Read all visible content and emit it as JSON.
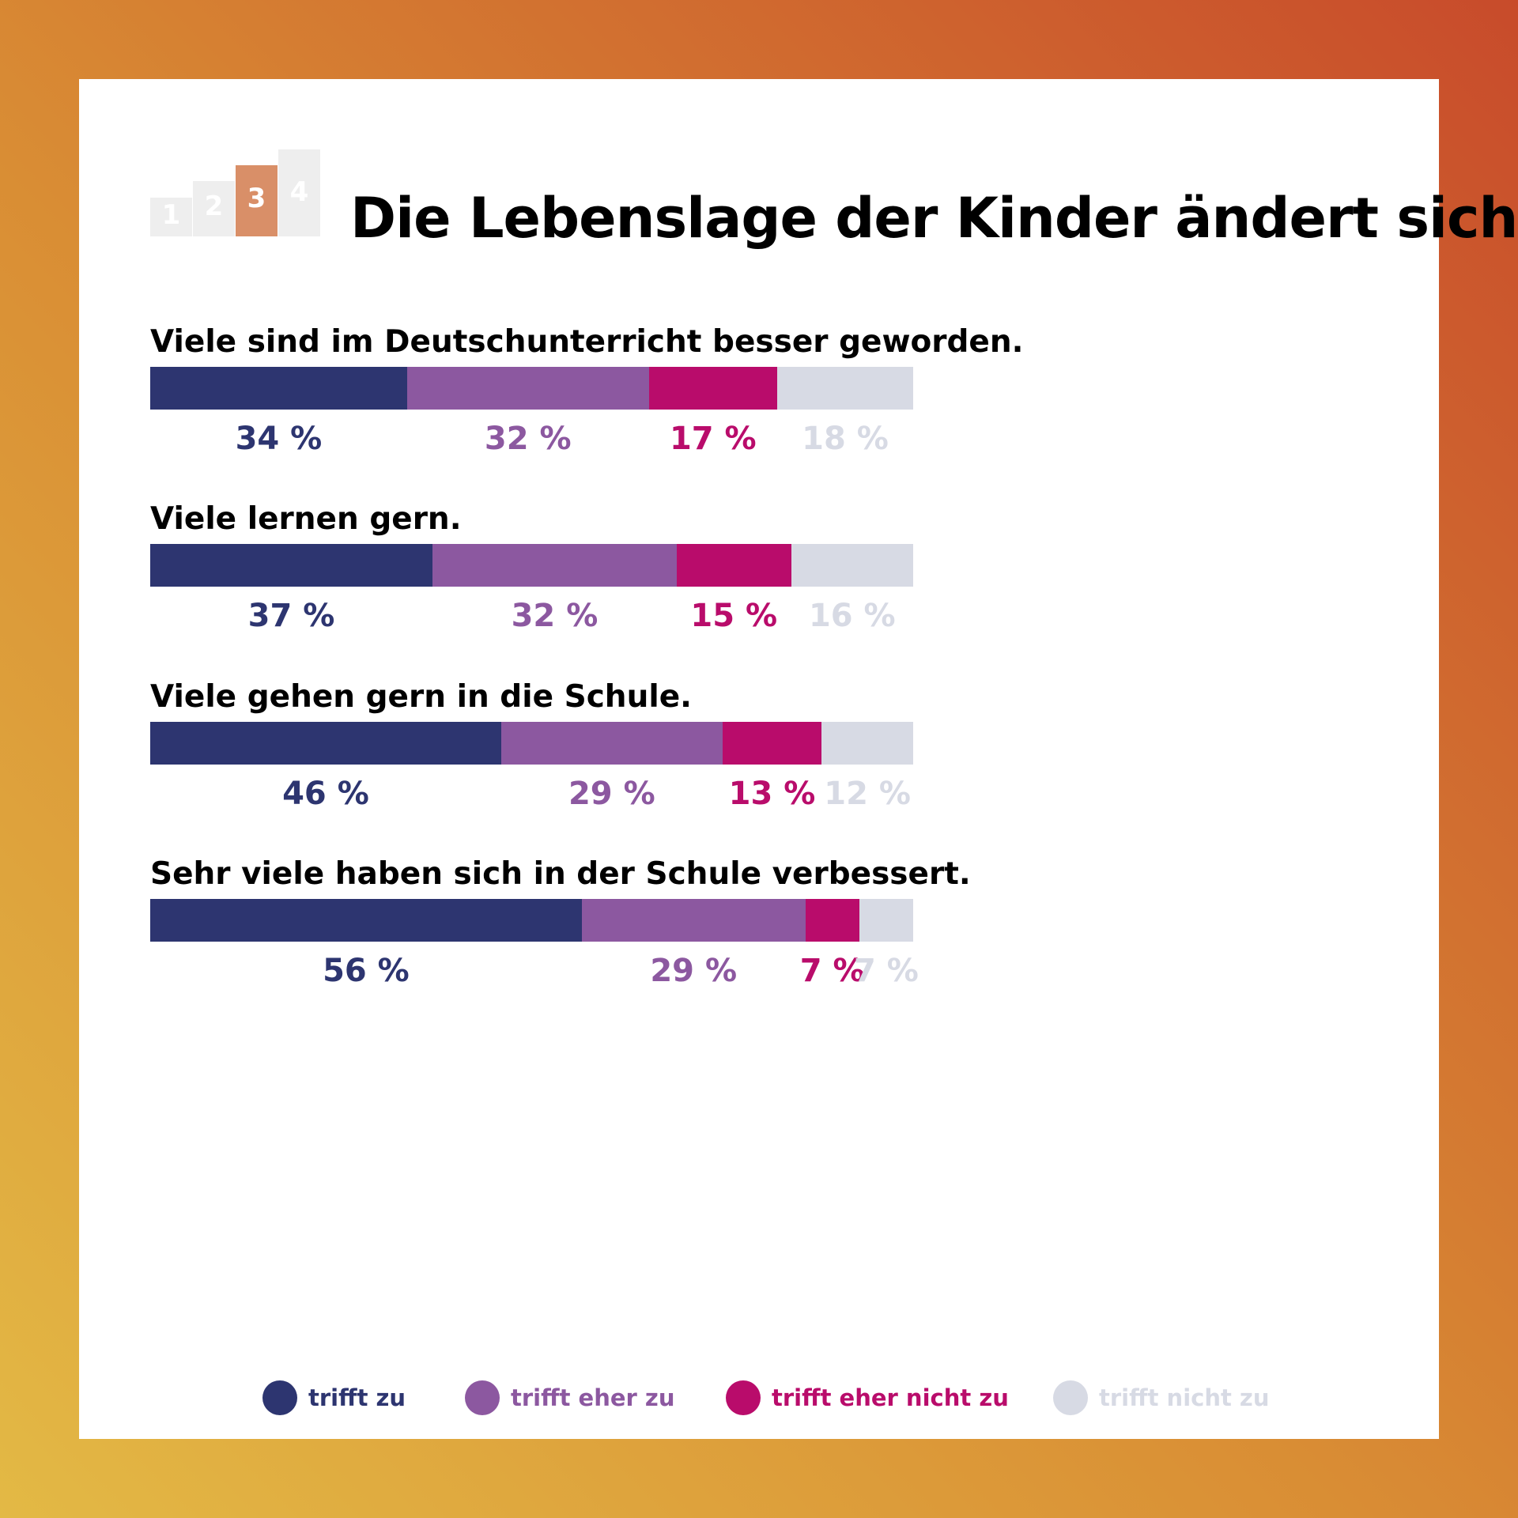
{
  "title": "Die Lebenslage der Kinder ändert sich",
  "podium": {
    "steps": [
      "1",
      "2",
      "3",
      "4"
    ],
    "highlight": "3",
    "highlight_color": "#d98f68"
  },
  "colors": {
    "trifft_zu": "#2d3570",
    "trifft_eher_zu": "#8c58a0",
    "trifft_eher_nicht_zu": "#b90c6b",
    "trifft_nicht_zu": "#d7dae4"
  },
  "legend": [
    {
      "label": "trifft zu",
      "color": "#2d3570"
    },
    {
      "label": "trifft eher zu",
      "color": "#8c58a0"
    },
    {
      "label": "trifft eher nicht zu",
      "color": "#b90c6b"
    },
    {
      "label": "trifft nicht zu",
      "color": "#d7dae4"
    }
  ],
  "chart_data": {
    "type": "bar",
    "orientation": "horizontal",
    "stacked": true,
    "unit": "%",
    "categories": [
      "Viele sind im Deutschunterricht besser geworden.",
      "Viele lernen gern.",
      "Viele gehen gern in die Schule.",
      "Sehr viele haben sich in der Schule verbessert."
    ],
    "series": [
      {
        "name": "trifft zu",
        "color": "#2d3570",
        "values": [
          34,
          37,
          46,
          56
        ]
      },
      {
        "name": "trifft eher zu",
        "color": "#8c58a0",
        "values": [
          32,
          32,
          29,
          29
        ]
      },
      {
        "name": "trifft eher nicht zu",
        "color": "#b90c6b",
        "values": [
          17,
          15,
          13,
          7
        ]
      },
      {
        "name": "trifft nicht zu",
        "color": "#d7dae4",
        "values": [
          18,
          16,
          12,
          7
        ]
      }
    ],
    "data_labels": [
      [
        "34 %",
        "32 %",
        "17 %",
        "18 %"
      ],
      [
        "37 %",
        "32 %",
        "15 %",
        "16 %"
      ],
      [
        "46 %",
        "29 %",
        "13 %",
        "12 %"
      ],
      [
        "56 %",
        "29 %",
        "7 %",
        "7 %"
      ]
    ],
    "legend_position": "bottom",
    "grid": false
  }
}
